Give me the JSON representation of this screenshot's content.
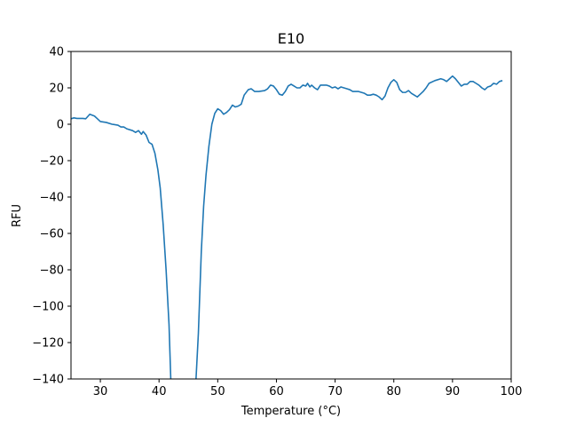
{
  "chart_data": {
    "type": "line",
    "title": "E10",
    "xlabel": "Temperature (°C)",
    "ylabel": "RFU",
    "xlim": [
      25,
      100
    ],
    "ylim": [
      -140,
      40
    ],
    "xticks": [
      30,
      40,
      50,
      60,
      70,
      80,
      90,
      100
    ],
    "yticks": [
      40,
      20,
      0,
      -20,
      -40,
      -60,
      -80,
      -100,
      -120,
      -140
    ],
    "grid": false,
    "series": [
      {
        "color": "#1f77b4",
        "points": [
          [
            25,
            3
          ],
          [
            25.5,
            3.5
          ],
          [
            26,
            3.2
          ],
          [
            27,
            3.2
          ],
          [
            27.5,
            3
          ],
          [
            28.2,
            5.5
          ],
          [
            29,
            4.5
          ],
          [
            29.5,
            3
          ],
          [
            30,
            1.5
          ],
          [
            31,
            1
          ],
          [
            32,
            0
          ],
          [
            33,
            -0.5
          ],
          [
            33.5,
            -1.5
          ],
          [
            34,
            -1.5
          ],
          [
            34.5,
            -2.5
          ],
          [
            35.5,
            -3.5
          ],
          [
            36,
            -4.5
          ],
          [
            36.5,
            -3.5
          ],
          [
            37,
            -5.5
          ],
          [
            37.3,
            -4
          ],
          [
            37.8,
            -6
          ],
          [
            38.3,
            -10
          ],
          [
            38.8,
            -11
          ],
          [
            39.3,
            -16
          ],
          [
            39.8,
            -25
          ],
          [
            40.2,
            -35
          ],
          [
            40.7,
            -55
          ],
          [
            41.2,
            -80
          ],
          [
            41.7,
            -110
          ],
          [
            42,
            -140
          ],
          [
            46.3,
            -140
          ],
          [
            46.7,
            -115
          ],
          [
            47.2,
            -70
          ],
          [
            47.6,
            -45
          ],
          [
            48,
            -28
          ],
          [
            48.5,
            -12
          ],
          [
            49,
            0
          ],
          [
            49.5,
            6
          ],
          [
            50,
            8.5
          ],
          [
            50.5,
            7.5
          ],
          [
            51,
            5.5
          ],
          [
            51.5,
            6.5
          ],
          [
            52,
            8
          ],
          [
            52.5,
            10.5
          ],
          [
            53,
            9.5
          ],
          [
            53.5,
            10
          ],
          [
            54,
            11
          ],
          [
            54.5,
            16
          ],
          [
            55.2,
            19
          ],
          [
            55.7,
            19.5
          ],
          [
            56.3,
            18
          ],
          [
            57,
            18
          ],
          [
            58,
            18.5
          ],
          [
            58.5,
            19.5
          ],
          [
            59,
            21.5
          ],
          [
            59.5,
            21
          ],
          [
            60,
            19
          ],
          [
            60.5,
            16.5
          ],
          [
            61,
            16
          ],
          [
            61.5,
            18
          ],
          [
            62,
            21
          ],
          [
            62.5,
            22
          ],
          [
            63,
            21
          ],
          [
            63.5,
            20
          ],
          [
            64,
            20
          ],
          [
            64.5,
            21.5
          ],
          [
            65,
            21
          ],
          [
            65.3,
            22.5
          ],
          [
            65.7,
            20.5
          ],
          [
            66,
            21.5
          ],
          [
            66.5,
            20
          ],
          [
            67,
            19
          ],
          [
            67.5,
            21.5
          ],
          [
            68,
            21.5
          ],
          [
            68.5,
            21.5
          ],
          [
            69,
            21
          ],
          [
            69.5,
            20
          ],
          [
            70,
            20.5
          ],
          [
            70.5,
            19.5
          ],
          [
            71,
            20.5
          ],
          [
            71.5,
            20
          ],
          [
            72,
            19.5
          ],
          [
            72.5,
            19
          ],
          [
            73,
            18
          ],
          [
            74,
            18
          ],
          [
            74.5,
            17.5
          ],
          [
            75,
            17
          ],
          [
            75.5,
            16
          ],
          [
            76,
            16
          ],
          [
            76.5,
            16.5
          ],
          [
            77,
            16
          ],
          [
            77.5,
            15
          ],
          [
            78,
            13.5
          ],
          [
            78.5,
            15.5
          ],
          [
            79,
            20
          ],
          [
            79.5,
            23
          ],
          [
            80,
            24.5
          ],
          [
            80.5,
            23
          ],
          [
            81,
            19
          ],
          [
            81.5,
            17.5
          ],
          [
            82,
            17.5
          ],
          [
            82.5,
            18.5
          ],
          [
            83,
            17
          ],
          [
            83.5,
            16
          ],
          [
            84,
            15
          ],
          [
            84.5,
            16.5
          ],
          [
            85,
            18
          ],
          [
            85.5,
            20
          ],
          [
            86,
            22.5
          ],
          [
            87,
            24
          ],
          [
            88,
            25
          ],
          [
            88.5,
            24.5
          ],
          [
            89,
            23.5
          ],
          [
            89.5,
            25
          ],
          [
            90,
            26.5
          ],
          [
            90.5,
            25
          ],
          [
            91,
            23
          ],
          [
            91.5,
            21
          ],
          [
            92,
            22
          ],
          [
            92.5,
            22
          ],
          [
            93,
            23.5
          ],
          [
            93.5,
            23.5
          ],
          [
            94,
            22.5
          ],
          [
            94.5,
            21.5
          ],
          [
            95,
            20
          ],
          [
            95.5,
            19
          ],
          [
            96,
            20.5
          ],
          [
            96.5,
            21
          ],
          [
            97,
            22.5
          ],
          [
            97.5,
            22
          ],
          [
            98,
            23.5
          ],
          [
            98.5,
            24
          ]
        ]
      }
    ]
  }
}
